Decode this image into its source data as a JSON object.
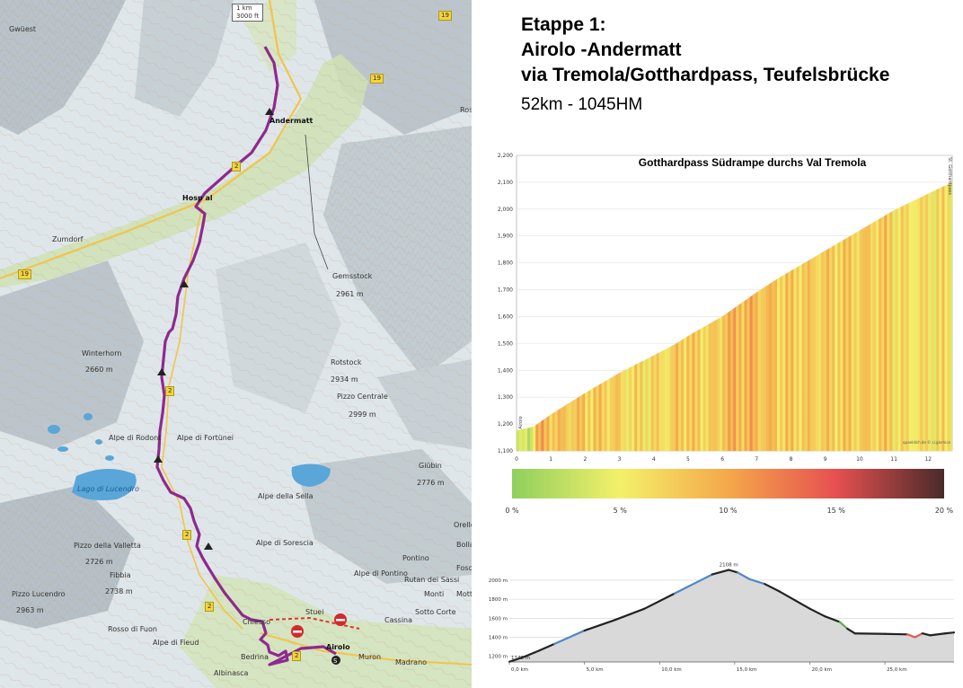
{
  "title": {
    "line1": "Etappe 1:",
    "line2": "Airolo -Andermatt",
    "line3": "via Tremola/Gotthardpass, Teufelsbrücke",
    "stats": "52km - 1045HM"
  },
  "map": {
    "scale_km": "1 km",
    "scale_ft": "3000 ft",
    "route_color": "#8e2a8e",
    "labels": {
      "gwiest": "Gwüest",
      "andermatt": "Andermatt",
      "hospental": "Hosp  al",
      "zumdorf": "Zumdorf",
      "gemsstock": "Gemsstock",
      "gemsstock_h": "2961 m",
      "winterhorn": "Winterhorn",
      "winterhorn_h": "2660 m",
      "rotstock": "Rotstock",
      "rotstock_h": "2934 m",
      "pizzo_centrale": "Pizzo Centrale",
      "pizzo_centrale_h": "2999 m",
      "alpe_rodont": "Alpe di Rodont",
      "alpe_fortunei": "Alpe di Fortünei",
      "lago_lucendro": "Lago di Lucendro",
      "alpe_sella": "Alpe della Sella",
      "giubin": "Giübin",
      "giubin_h": "2776 m",
      "pizzo_valletta": "Pizzo della Valletta",
      "pizzo_valletta_h": "2726 m",
      "fibbia": "Fibbia",
      "fibbia_h": "2738 m",
      "alpe_sorescia": "Alpe di Sorescia",
      "alpe_pontino": "Alpe di Pontino",
      "pontino": "Pontino",
      "rutan": "Rutan dei Sassi",
      "orello": "Orello",
      "bolla": "Bolla",
      "fosc": "Fosc",
      "monti": "Monti",
      "motto": "Motto",
      "sotto_corte": "Sotto Corte",
      "cassina": "Cassina",
      "pizzo_lucendro": "Pizzo Lucendro",
      "pizzo_lucendro_h": "2963 m",
      "rosso_fuon": "Rosso di Fuon",
      "alpe_fieud": "Alpe di Fieud",
      "bedrina": "Bedrina",
      "albinasca": "Albinasca",
      "airolo": "Airolo",
      "muron": "Muron",
      "madrano": "Madrano",
      "stuei": "Stuei",
      "chiesso": "Chiesso",
      "ross": "Ross"
    },
    "road_badges": [
      "19",
      "19",
      "19",
      "2",
      "2",
      "2",
      "2",
      "2"
    ]
  },
  "chart_data": [
    {
      "type": "area",
      "title": "Gotthardpass Südrampe durchs Val Tremola",
      "x_ticks": [
        "0",
        "1",
        "2",
        "3",
        "4",
        "5",
        "6",
        "7",
        "8",
        "9",
        "10",
        "11",
        "12"
      ],
      "y_ticks": [
        "1,100",
        "1,200",
        "1,300",
        "1,400",
        "1,500",
        "1,600",
        "1,700",
        "1,800",
        "1,900",
        "2,000",
        "2,100",
        "2,200"
      ],
      "xlim": [
        0,
        12.7
      ],
      "ylim": [
        1100,
        2200
      ],
      "x": [
        0,
        0.5,
        1,
        2,
        3,
        4,
        4.6,
        5.1,
        6,
        7,
        7.6,
        8,
        9,
        10,
        11,
        11.4,
        12.7
      ],
      "y": [
        1175,
        1190,
        1235,
        1315,
        1390,
        1455,
        1495,
        1535,
        1600,
        1690,
        1740,
        1770,
        1845,
        1920,
        1995,
        2020,
        2100
      ],
      "start_label": "Airolo",
      "end_label": "St. Gotthardpass",
      "footer": "quaeldich.de © ci.giornico",
      "gradient_legend": {
        "labels": [
          "0 %",
          "5 %",
          "10 %",
          "15 %",
          "20 %"
        ],
        "colors": [
          "#8fcf5e",
          "#f4f06a",
          "#f4a84a",
          "#e65050",
          "#4a2a2a"
        ]
      }
    },
    {
      "type": "area",
      "peak_label": "2108 m",
      "start_label": "1142 m",
      "y_ticks": [
        "1200 m",
        "1400 m",
        "1600 m",
        "1800 m",
        "2000 m"
      ],
      "x_ticks": [
        "0,0 km",
        "5,0 km",
        "10,0 km",
        "15,0 km",
        "20,0 km",
        "25,0 km"
      ],
      "xlim": [
        0,
        29.6
      ],
      "ylim": [
        1140,
        2160
      ],
      "x": [
        0,
        1,
        2,
        3,
        5,
        7,
        9,
        11,
        12.5,
        13.5,
        14.6,
        15.2,
        16,
        17,
        18,
        19,
        20,
        21,
        22,
        22.5,
        23,
        25,
        26.5,
        27,
        27.5,
        28,
        29,
        29.6
      ],
      "y": [
        1142,
        1195,
        1260,
        1330,
        1470,
        1580,
        1700,
        1860,
        1980,
        2060,
        2108,
        2080,
        2010,
        1960,
        1880,
        1790,
        1700,
        1620,
        1560,
        1490,
        1440,
        1435,
        1430,
        1400,
        1440,
        1420,
        1440,
        1450
      ]
    }
  ]
}
